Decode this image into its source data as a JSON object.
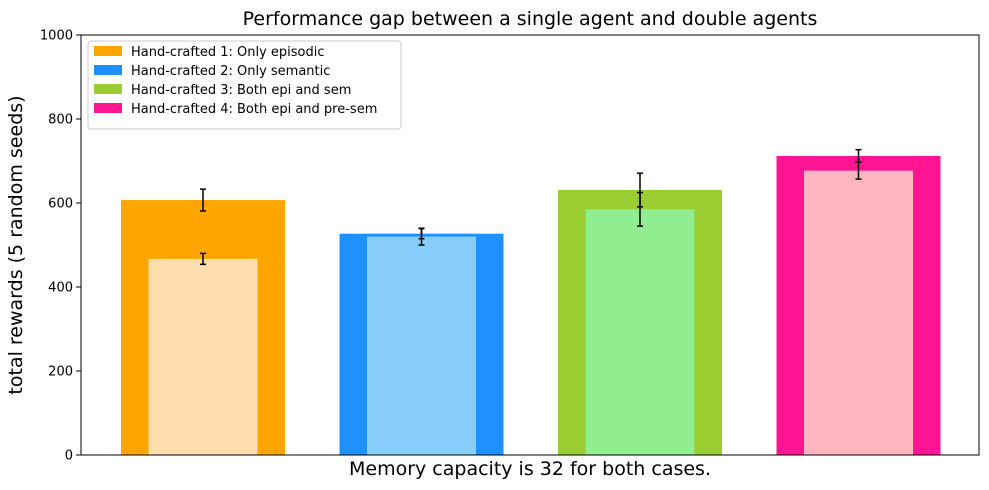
{
  "chart_data": {
    "type": "bar",
    "title": "Performance gap between a single agent and double agents",
    "xlabel": "Memory capacity is 32 for both cases.",
    "ylabel": "total rewards (5 random seeds)",
    "ylim": [
      0,
      1000
    ],
    "yticks": [
      0,
      200,
      400,
      600,
      800,
      1000
    ],
    "grid": false,
    "legend_position": "top-left",
    "series": [
      {
        "name": "Hand-crafted 1: Only episodic",
        "outer_value": 607,
        "outer_error": 26,
        "inner_value": 467,
        "inner_error": 13,
        "outer_color": "#ffa500",
        "inner_color": "#ffdead"
      },
      {
        "name": "Hand-crafted 2: Only semantic",
        "outer_value": 527,
        "outer_error": 12,
        "inner_value": 520,
        "inner_error": 20,
        "outer_color": "#1e90ff",
        "inner_color": "#87cefa"
      },
      {
        "name": "Hand-crafted 3: Both epi and sem",
        "outer_value": 631,
        "outer_error": 40,
        "inner_value": 585,
        "inner_error": 40,
        "outer_color": "#9acd32",
        "inner_color": "#90ee90"
      },
      {
        "name": "Hand-crafted 4: Both epi and pre-sem",
        "outer_value": 712,
        "outer_error": 15,
        "inner_value": 677,
        "inner_error": 20,
        "outer_color": "#ff1493",
        "inner_color": "#ffb6c1"
      }
    ]
  }
}
